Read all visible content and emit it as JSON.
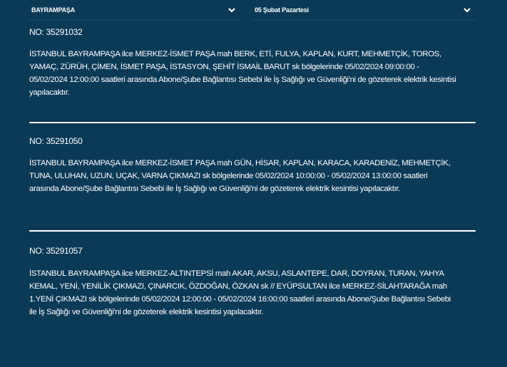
{
  "filters": {
    "district": "BAYRAMPAŞA",
    "date": "05 Şubat Pazartesi"
  },
  "outages": [
    {
      "no": "NO: 35291032",
      "description": "İSTANBUL BAYRAMPAŞA ilce MERKEZ-İSMET PAŞA mah BERK, ETİ, FULYA, KAPLAN, KURT, MEHMETÇİK, TOROS, YAMAÇ, ZÜRÜH, ÇİMEN, İSMET PAŞA, İSTASYON, ŞEHİT İSMAİL BARUT sk bölgelerinde 05/02/2024 09:00:00 - 05/02/2024 12:00:00 saatleri arasında Abone/Şube Bağlantısı Sebebi ile İş Sağlığı ve Güvenliği'ni de gözeterek elektrik kesintisi yapılacaktır."
    },
    {
      "no": "NO: 35291050",
      "description": "İSTANBUL BAYRAMPAŞA ilce MERKEZ-İSMET PAŞA mah GÜN, HİSAR, KAPLAN, KARACA, KARADENİZ, MEHMETÇİK, TUNA, ULUHAN, UZUN, UÇAK, VARNA ÇIKMAZI sk bölgelerinde 05/02/2024 10:00:00 - 05/02/2024 13:00:00 saatleri arasında Abone/Şube Bağlantısı Sebebi ile İş Sağlığı ve Güvenliği'ni de gözeterek elektrik kesintisi yapılacaktır."
    },
    {
      "no": "NO: 35291057",
      "description": "İSTANBUL BAYRAMPAŞA ilce MERKEZ-ALTINTEPSİ mah AKAR, AKSU, ASLANTEPE, DAR, DOYRAN, TURAN, YAHYA KEMAL, YENİ, YENİLİK ÇIKMAZI, ÇINARCIK, ÖZDOĞAN, ÖZKAN sk // EYÜPSULTAN ilce MERKEZ-SİLAHTARAĞA mah 1.YENİ ÇIKMAZI sk bölgelerinde 05/02/2024 12:00:00 - 05/02/2024 16:00:00 saatleri arasında Abone/Şube Bağlantısı Sebebi ile İş Sağlığı ve Güvenliği'ni de gözeterek elektrik kesintisi yapılacaktır."
    }
  ]
}
